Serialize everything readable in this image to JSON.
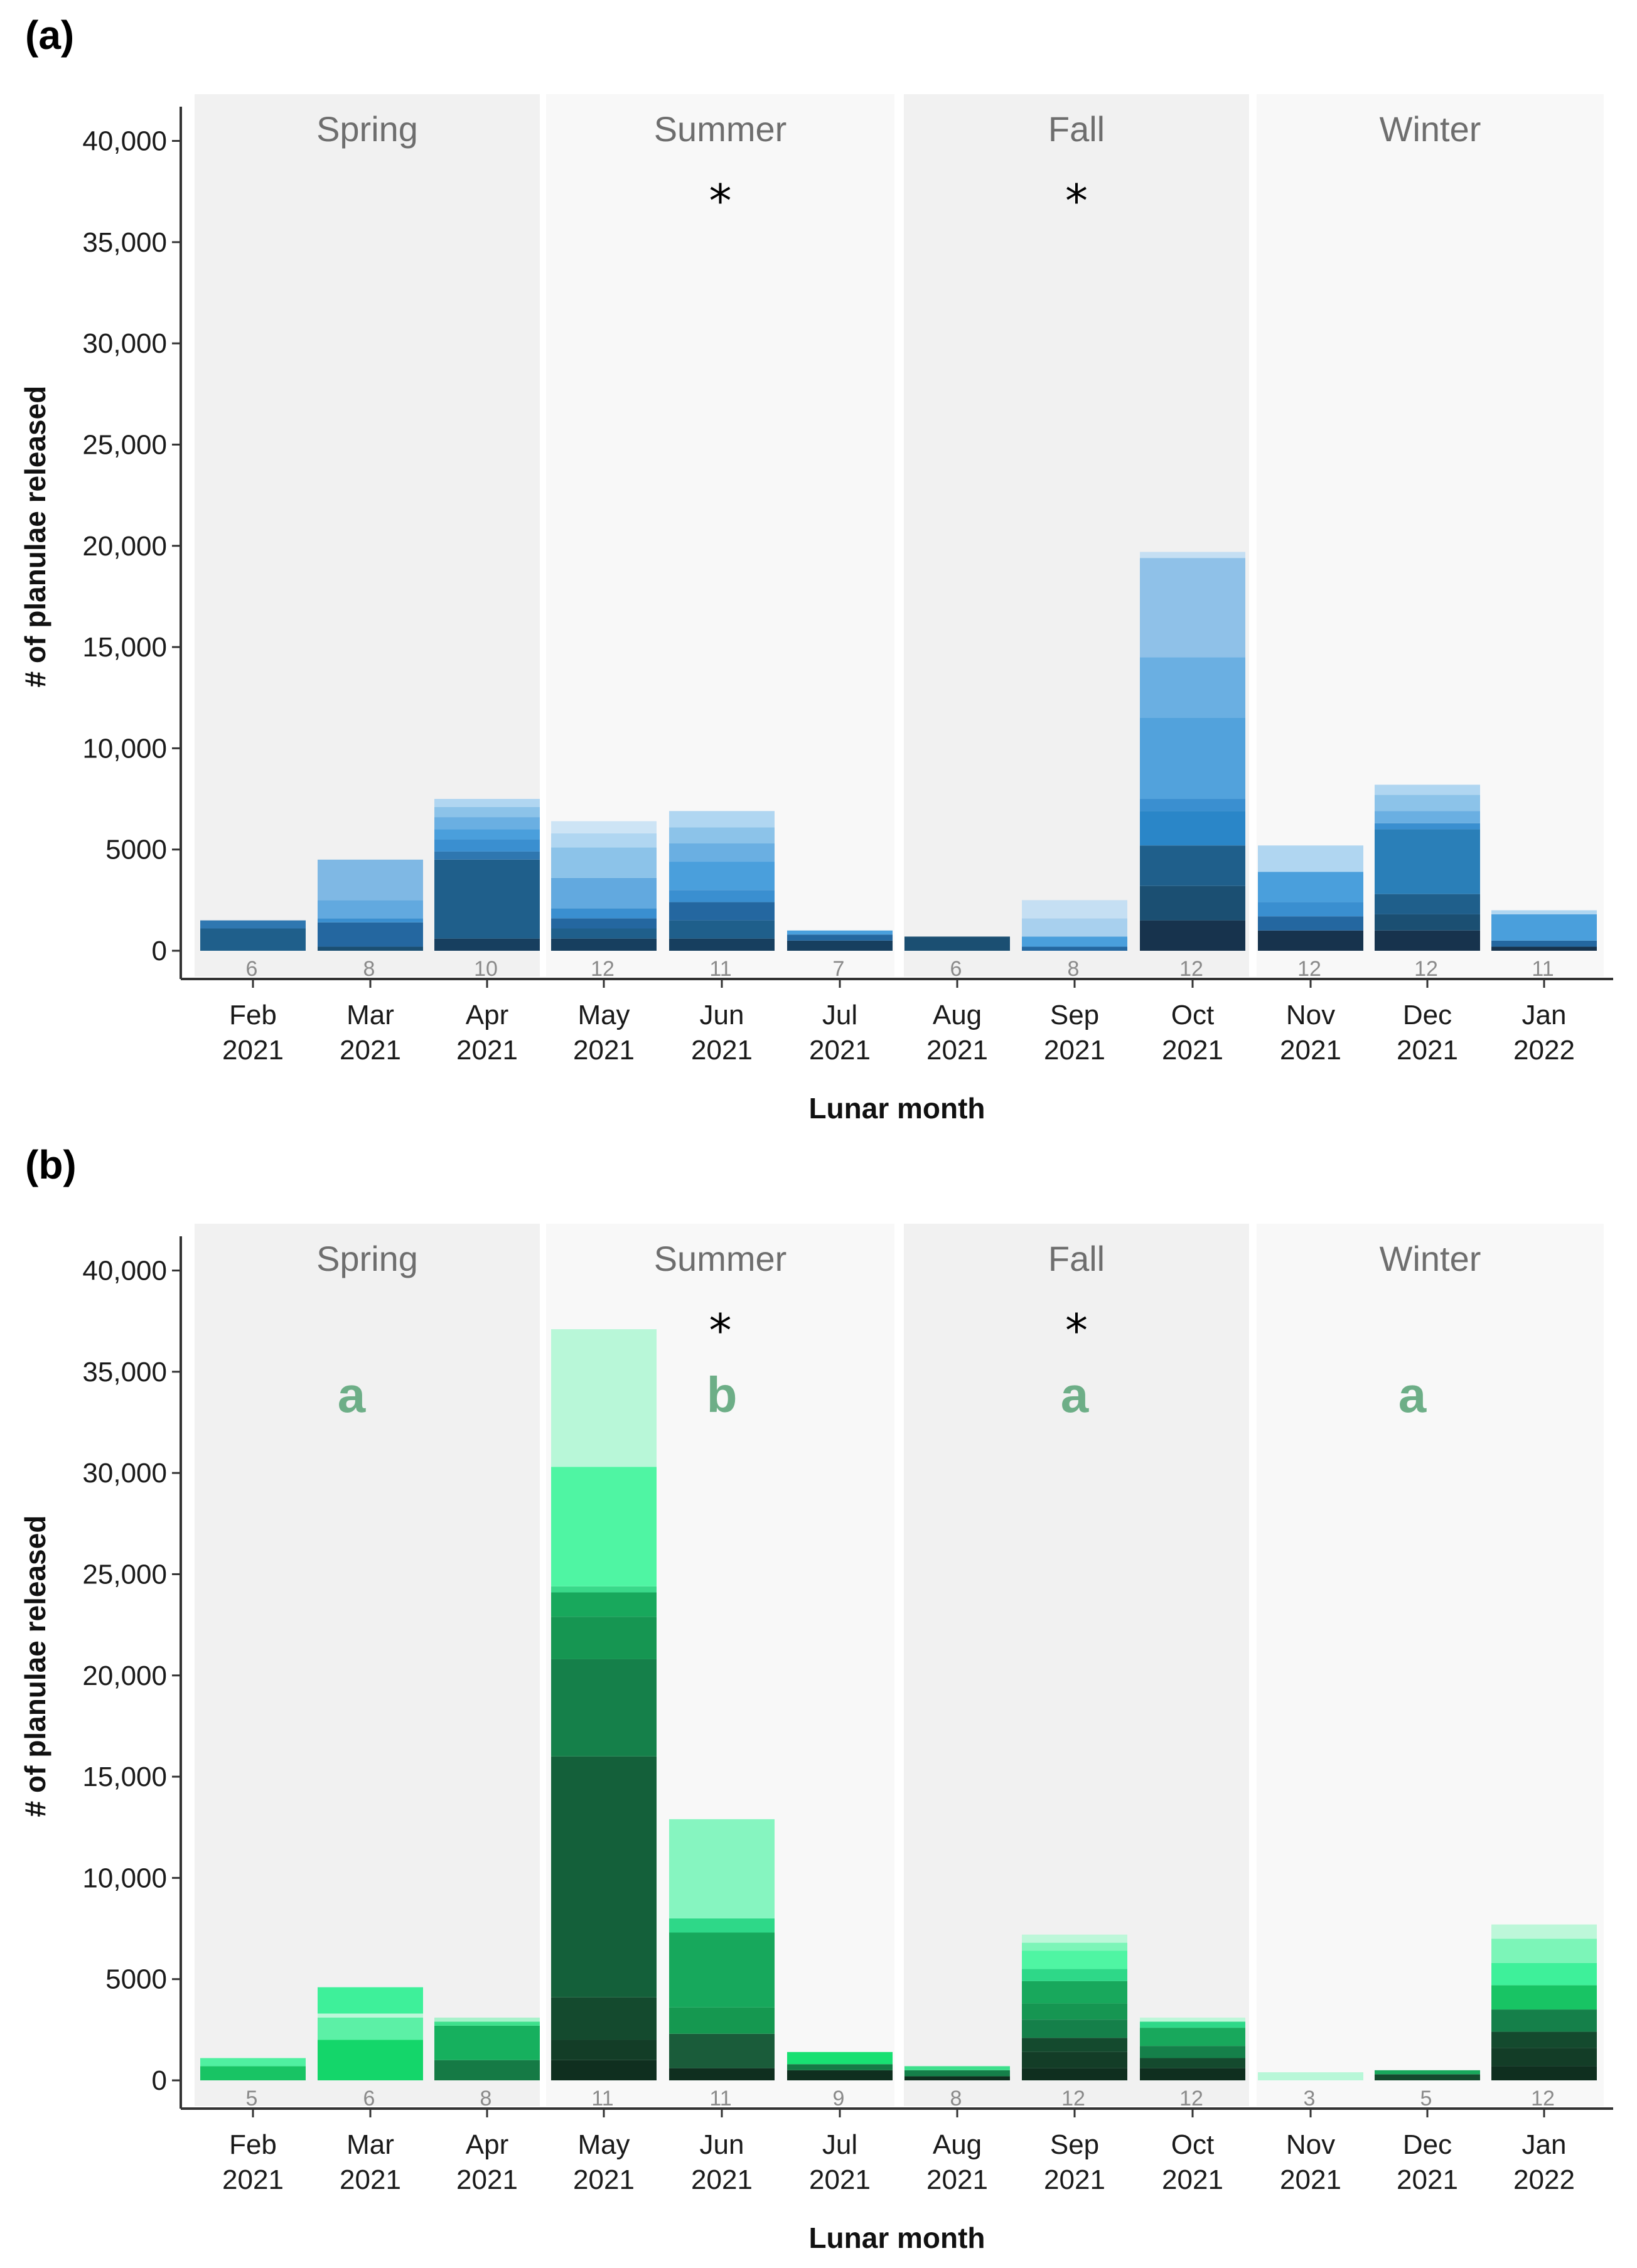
{
  "chart_data": [
    {
      "type": "bar",
      "stacked": true,
      "panel_label": "(a)",
      "xlabel": "Lunar month",
      "ylabel": "# of planulae released",
      "ylim": [
        0,
        42000
      ],
      "yticks": [
        0,
        5000,
        10000,
        15000,
        20000,
        25000,
        30000,
        35000,
        40000
      ],
      "ytick_labels": [
        "0",
        "5000",
        "10,000",
        "15,000",
        "20,000",
        "25,000",
        "30,000",
        "35,000",
        "40,000"
      ],
      "categories": [
        [
          "Feb",
          "2021"
        ],
        [
          "Mar",
          "2021"
        ],
        [
          "Apr",
          "2021"
        ],
        [
          "May",
          "2021"
        ],
        [
          "Jun",
          "2021"
        ],
        [
          "Jul",
          "2021"
        ],
        [
          "Aug",
          "2021"
        ],
        [
          "Sep",
          "2021"
        ],
        [
          "Oct",
          "2021"
        ],
        [
          "Nov",
          "2021"
        ],
        [
          "Dec",
          "2021"
        ],
        [
          "Jan",
          "2022"
        ]
      ],
      "n_labels": [
        "6",
        "8",
        "10",
        "12",
        "11",
        "7",
        "6",
        "8",
        "12",
        "12",
        "12",
        "11"
      ],
      "seasons": [
        {
          "name": "Spring",
          "star": "",
          "letter": "",
          "band": "#f1f1f1"
        },
        {
          "name": "Summer",
          "star": "*",
          "letter": "",
          "band": "#f8f8f8"
        },
        {
          "name": "Fall",
          "star": "*",
          "letter": "",
          "band": "#f1f1f1"
        },
        {
          "name": "Winter",
          "star": "",
          "letter": "",
          "band": "#f8f8f8"
        }
      ],
      "stack_segments": [
        [
          {
            "v": 1100,
            "c": "#1f5f8b"
          },
          {
            "v": 400,
            "c": "#2f77b0"
          }
        ],
        [
          {
            "v": 200,
            "c": "#1b4f72"
          },
          {
            "v": 1200,
            "c": "#2467a0"
          },
          {
            "v": 200,
            "c": "#3a8fd0"
          },
          {
            "v": 900,
            "c": "#62a9df"
          },
          {
            "v": 2000,
            "c": "#7fb8e4"
          }
        ],
        [
          {
            "v": 600,
            "c": "#173f5f"
          },
          {
            "v": 3900,
            "c": "#1f5f8b"
          },
          {
            "v": 400,
            "c": "#2f77b0"
          },
          {
            "v": 600,
            "c": "#3a8fd0"
          },
          {
            "v": 500,
            "c": "#4a9fdc"
          },
          {
            "v": 600,
            "c": "#6aafe2"
          },
          {
            "v": 500,
            "c": "#8cc3e9"
          },
          {
            "v": 400,
            "c": "#b0d6f1"
          }
        ],
        [
          {
            "v": 600,
            "c": "#173f5f"
          },
          {
            "v": 500,
            "c": "#1f5f8b"
          },
          {
            "v": 500,
            "c": "#2467a0"
          },
          {
            "v": 500,
            "c": "#3a8fd0"
          },
          {
            "v": 1500,
            "c": "#62a9df"
          },
          {
            "v": 1500,
            "c": "#8cc3e9"
          },
          {
            "v": 700,
            "c": "#b0d6f1"
          },
          {
            "v": 600,
            "c": "#cde4f5"
          }
        ],
        [
          {
            "v": 600,
            "c": "#173f5f"
          },
          {
            "v": 900,
            "c": "#1f5f8b"
          },
          {
            "v": 900,
            "c": "#2467a0"
          },
          {
            "v": 600,
            "c": "#3a8fd0"
          },
          {
            "v": 1400,
            "c": "#4a9fdc"
          },
          {
            "v": 900,
            "c": "#6aafe2"
          },
          {
            "v": 800,
            "c": "#8cc3e9"
          },
          {
            "v": 800,
            "c": "#b0d6f1"
          }
        ],
        [
          {
            "v": 500,
            "c": "#173f5f"
          },
          {
            "v": 300,
            "c": "#2467a0"
          },
          {
            "v": 200,
            "c": "#4a9fdc"
          }
        ],
        [
          {
            "v": 700,
            "c": "#1b4f72"
          }
        ],
        [
          {
            "v": 200,
            "c": "#2467a0"
          },
          {
            "v": 500,
            "c": "#4a9fdc"
          },
          {
            "v": 900,
            "c": "#a8d0ee"
          },
          {
            "v": 900,
            "c": "#c5dff3"
          }
        ],
        [
          {
            "v": 1500,
            "c": "#17334d"
          },
          {
            "v": 1700,
            "c": "#1b4f72"
          },
          {
            "v": 2000,
            "c": "#1f5f8b"
          },
          {
            "v": 1700,
            "c": "#2a86c8"
          },
          {
            "v": 600,
            "c": "#3a8fd0"
          },
          {
            "v": 4000,
            "c": "#52a2dc"
          },
          {
            "v": 3000,
            "c": "#6aafe2"
          },
          {
            "v": 4900,
            "c": "#8fc1e8"
          },
          {
            "v": 300,
            "c": "#c5dff3"
          }
        ],
        [
          {
            "v": 1000,
            "c": "#17334d"
          },
          {
            "v": 700,
            "c": "#2467a0"
          },
          {
            "v": 700,
            "c": "#3a8fd0"
          },
          {
            "v": 1500,
            "c": "#4a9fdc"
          },
          {
            "v": 1300,
            "c": "#b0d6f1"
          }
        ],
        [
          {
            "v": 1000,
            "c": "#17334d"
          },
          {
            "v": 800,
            "c": "#1b4f72"
          },
          {
            "v": 1000,
            "c": "#1f5f8b"
          },
          {
            "v": 3200,
            "c": "#2a7fb8"
          },
          {
            "v": 300,
            "c": "#3a8fd0"
          },
          {
            "v": 600,
            "c": "#6aafe2"
          },
          {
            "v": 800,
            "c": "#8cc3e9"
          },
          {
            "v": 500,
            "c": "#b0d6f1"
          }
        ],
        [
          {
            "v": 200,
            "c": "#17334d"
          },
          {
            "v": 300,
            "c": "#2467a0"
          },
          {
            "v": 1300,
            "c": "#4a9fdc"
          },
          {
            "v": 200,
            "c": "#b0d6f1"
          }
        ]
      ]
    },
    {
      "type": "bar",
      "stacked": true,
      "panel_label": "(b)",
      "xlabel": "Lunar month",
      "ylabel": "# of planulae released",
      "ylim": [
        0,
        42000
      ],
      "yticks": [
        0,
        5000,
        10000,
        15000,
        20000,
        25000,
        30000,
        35000,
        40000
      ],
      "ytick_labels": [
        "0",
        "5000",
        "10,000",
        "15,000",
        "20,000",
        "25,000",
        "30,000",
        "35,000",
        "40,000"
      ],
      "categories": [
        [
          "Feb",
          "2021"
        ],
        [
          "Mar",
          "2021"
        ],
        [
          "Apr",
          "2021"
        ],
        [
          "May",
          "2021"
        ],
        [
          "Jun",
          "2021"
        ],
        [
          "Jul",
          "2021"
        ],
        [
          "Aug",
          "2021"
        ],
        [
          "Sep",
          "2021"
        ],
        [
          "Oct",
          "2021"
        ],
        [
          "Nov",
          "2021"
        ],
        [
          "Dec",
          "2021"
        ],
        [
          "Jan",
          "2022"
        ]
      ],
      "n_labels": [
        "5",
        "6",
        "8",
        "11",
        "11",
        "9",
        "8",
        "12",
        "12",
        "3",
        "5",
        "12"
      ],
      "seasons": [
        {
          "name": "Spring",
          "star": "",
          "letter": "a",
          "band": "#f1f1f1"
        },
        {
          "name": "Summer",
          "star": "*",
          "letter": "b",
          "band": "#f8f8f8"
        },
        {
          "name": "Fall",
          "star": "*",
          "letter": "a",
          "band": "#f1f1f1"
        },
        {
          "name": "Winter",
          "star": "",
          "letter": "a",
          "band": "#f8f8f8"
        }
      ],
      "stack_segments": [
        [
          {
            "v": 700,
            "c": "#18c464"
          },
          {
            "v": 400,
            "c": "#4ff0a0"
          }
        ],
        [
          {
            "v": 2000,
            "c": "#14d66a"
          },
          {
            "v": 1100,
            "c": "#5cf0a6"
          },
          {
            "v": 200,
            "c": "#bdf7d9"
          },
          {
            "v": 1300,
            "c": "#3ef09a"
          }
        ],
        [
          {
            "v": 1000,
            "c": "#157a45"
          },
          {
            "v": 1700,
            "c": "#16b05e"
          },
          {
            "v": 200,
            "c": "#3ee08c"
          },
          {
            "v": 200,
            "c": "#a8f2cb"
          }
        ],
        [
          {
            "v": 1000,
            "c": "#0f2f1f"
          },
          {
            "v": 1000,
            "c": "#133d27"
          },
          {
            "v": 2100,
            "c": "#144a2e"
          },
          {
            "v": 11900,
            "c": "#14603a"
          },
          {
            "v": 4800,
            "c": "#15804a"
          },
          {
            "v": 2100,
            "c": "#169652"
          },
          {
            "v": 1200,
            "c": "#18a85c"
          },
          {
            "v": 300,
            "c": "#3ad98a"
          },
          {
            "v": 5900,
            "c": "#4ff5a3"
          },
          {
            "v": 6800,
            "c": "#b8f7d8"
          }
        ],
        [
          {
            "v": 600,
            "c": "#0f2f1f"
          },
          {
            "v": 1700,
            "c": "#1a5c3a"
          },
          {
            "v": 1300,
            "c": "#159850"
          },
          {
            "v": 3700,
            "c": "#17a85c"
          },
          {
            "v": 700,
            "c": "#2ed888"
          },
          {
            "v": 4900,
            "c": "#86f5c0"
          }
        ],
        [
          {
            "v": 500,
            "c": "#0f2f1f"
          },
          {
            "v": 300,
            "c": "#157a45"
          },
          {
            "v": 600,
            "c": "#18e072"
          }
        ],
        [
          {
            "v": 200,
            "c": "#0f2f1f"
          },
          {
            "v": 300,
            "c": "#15804a"
          },
          {
            "v": 200,
            "c": "#3ee08c"
          }
        ],
        [
          {
            "v": 600,
            "c": "#0f2f1f"
          },
          {
            "v": 800,
            "c": "#133d27"
          },
          {
            "v": 700,
            "c": "#144a2e"
          },
          {
            "v": 900,
            "c": "#15804a"
          },
          {
            "v": 800,
            "c": "#169652"
          },
          {
            "v": 1100,
            "c": "#18a85c"
          },
          {
            "v": 600,
            "c": "#2ed888"
          },
          {
            "v": 900,
            "c": "#4ff5a3"
          },
          {
            "v": 400,
            "c": "#7cf5b8"
          },
          {
            "v": 400,
            "c": "#bdf7d9"
          }
        ],
        [
          {
            "v": 600,
            "c": "#0f2f1f"
          },
          {
            "v": 500,
            "c": "#144a2e"
          },
          {
            "v": 600,
            "c": "#15804a"
          },
          {
            "v": 900,
            "c": "#18a85c"
          },
          {
            "v": 300,
            "c": "#2ed888"
          },
          {
            "v": 200,
            "c": "#bdf7d9"
          }
        ],
        [
          {
            "v": 400,
            "c": "#b8f7d8"
          }
        ],
        [
          {
            "v": 300,
            "c": "#144a2e"
          },
          {
            "v": 200,
            "c": "#18a85c"
          }
        ],
        [
          {
            "v": 700,
            "c": "#0f2f1f"
          },
          {
            "v": 900,
            "c": "#133d27"
          },
          {
            "v": 800,
            "c": "#144a2e"
          },
          {
            "v": 1100,
            "c": "#15804a"
          },
          {
            "v": 1200,
            "c": "#18c464"
          },
          {
            "v": 1100,
            "c": "#3ef09a"
          },
          {
            "v": 1200,
            "c": "#7cf5b8"
          },
          {
            "v": 700,
            "c": "#bdf7d9"
          }
        ]
      ]
    }
  ]
}
